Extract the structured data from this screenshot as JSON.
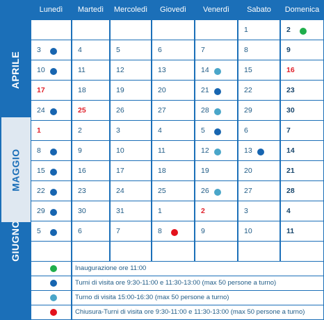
{
  "calendar": {
    "weekdays": [
      "Lunedì",
      "Martedì",
      "Mercoledì",
      "Giovedì",
      "Venerdì",
      "Sabato",
      "Domenica"
    ],
    "months": [
      "APRILE",
      "MAGGIO",
      "GIUGNO"
    ],
    "weeks": [
      [
        null,
        null,
        null,
        null,
        null,
        {
          "day": 1
        },
        {
          "day": 2,
          "marker": "green"
        }
      ],
      [
        {
          "day": 3,
          "marker": "blue"
        },
        {
          "day": 4
        },
        {
          "day": 5
        },
        {
          "day": 6
        },
        {
          "day": 7
        },
        {
          "day": 8
        },
        {
          "day": 9
        }
      ],
      [
        {
          "day": 10,
          "marker": "blue"
        },
        {
          "day": 11
        },
        {
          "day": 12
        },
        {
          "day": 13
        },
        {
          "day": 14,
          "marker": "lightblue"
        },
        {
          "day": 15
        },
        {
          "day": 16,
          "holiday": true
        }
      ],
      [
        {
          "day": 17,
          "holiday": true
        },
        {
          "day": 18
        },
        {
          "day": 19
        },
        {
          "day": 20
        },
        {
          "day": 21,
          "marker": "blue"
        },
        {
          "day": 22
        },
        {
          "day": 23
        }
      ],
      [
        {
          "day": 24,
          "marker": "blue"
        },
        {
          "day": 25,
          "holiday": true
        },
        {
          "day": 26
        },
        {
          "day": 27
        },
        {
          "day": 28,
          "marker": "lightblue"
        },
        {
          "day": 29
        },
        {
          "day": 30
        }
      ],
      [
        {
          "day": 1,
          "holiday": true
        },
        {
          "day": 2
        },
        {
          "day": 3
        },
        {
          "day": 4
        },
        {
          "day": 5,
          "marker": "blue"
        },
        {
          "day": 6
        },
        {
          "day": 7
        }
      ],
      [
        {
          "day": 8,
          "marker": "blue"
        },
        {
          "day": 9
        },
        {
          "day": 10
        },
        {
          "day": 11
        },
        {
          "day": 12,
          "marker": "lightblue"
        },
        {
          "day": 13,
          "marker": "blue"
        },
        {
          "day": 14
        }
      ],
      [
        {
          "day": 15,
          "marker": "blue"
        },
        {
          "day": 16
        },
        {
          "day": 17
        },
        {
          "day": 18
        },
        {
          "day": 19
        },
        {
          "day": 20
        },
        {
          "day": 21
        }
      ],
      [
        {
          "day": 22,
          "marker": "blue"
        },
        {
          "day": 23
        },
        {
          "day": 24
        },
        {
          "day": 25
        },
        {
          "day": 26,
          "marker": "lightblue"
        },
        {
          "day": 27
        },
        {
          "day": 28
        }
      ],
      [
        {
          "day": 29,
          "marker": "blue"
        },
        {
          "day": 30
        },
        {
          "day": 31
        },
        {
          "day": 1
        },
        {
          "day": 2,
          "holiday": true
        },
        {
          "day": 3
        },
        {
          "day": 4
        }
      ],
      [
        {
          "day": 5,
          "marker": "blue"
        },
        {
          "day": 6
        },
        {
          "day": 7
        },
        {
          "day": 8,
          "marker": "red"
        },
        {
          "day": 9
        },
        {
          "day": 10
        },
        {
          "day": 11
        }
      ],
      [
        null,
        null,
        null,
        null,
        null,
        null,
        null
      ]
    ],
    "legend": [
      {
        "marker": "green",
        "text": "Inaugurazione ore 11:00"
      },
      {
        "marker": "blue",
        "text": "Turni di visita ore 9:30-11:00 e 11:30-13:00 (max 50 persone a turno)"
      },
      {
        "marker": "lightblue",
        "text": "Turno di visita 15:00-16:30 (max 50 persone a turno)"
      },
      {
        "marker": "red",
        "text": "Chiusura-Turni di visita ore 9:30-11:00 e 11:30-13:00 (max 50 persone a turno)"
      }
    ]
  }
}
